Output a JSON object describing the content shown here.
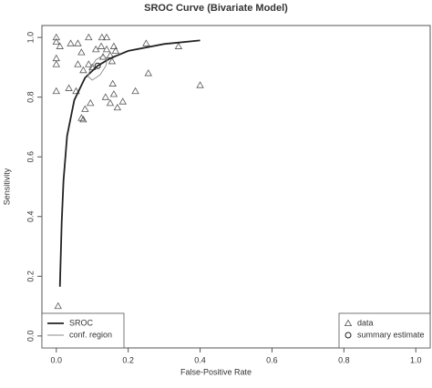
{
  "chart_data": {
    "type": "scatter",
    "title": "SROC Curve (Bivariate Model)",
    "x_label": "False-Positive Rate",
    "y_label": "Sensitivity",
    "xlim": [
      -0.04,
      1.04
    ],
    "ylim": [
      -0.04,
      1.04
    ],
    "xticks": [
      {
        "value": 0,
        "label": "0.0"
      },
      0.2,
      0.4,
      0.6,
      0.8,
      {
        "value": 1,
        "label": "1.0"
      }
    ],
    "yticks": [
      {
        "value": 0,
        "label": "0.0"
      },
      0.2,
      0.4,
      0.6,
      0.8,
      {
        "value": 1,
        "label": "1.0"
      }
    ],
    "series": [
      {
        "name": "data",
        "kind": "triangle",
        "color": "#555555",
        "legend": "bottomright",
        "x": [
          0.0,
          0.0,
          0.01,
          0.0,
          0.0,
          0.0,
          0.005,
          0.04,
          0.06,
          0.09,
          0.07,
          0.06,
          0.09,
          0.035,
          0.055,
          0.075,
          0.1,
          0.08,
          0.07,
          0.075,
          0.095,
          0.11,
          0.127,
          0.14,
          0.125,
          0.14,
          0.13,
          0.15,
          0.16,
          0.165,
          0.155,
          0.137,
          0.157,
          0.15,
          0.17,
          0.16,
          0.185,
          0.22,
          0.25,
          0.256,
          0.34,
          0.4
        ],
        "y": [
          1.0,
          0.985,
          0.97,
          0.93,
          0.91,
          0.82,
          0.1,
          0.98,
          0.98,
          1.0,
          0.95,
          0.91,
          0.91,
          0.83,
          0.82,
          0.89,
          0.9,
          0.76,
          0.73,
          0.725,
          0.78,
          0.96,
          1.0,
          1.0,
          0.97,
          0.96,
          0.935,
          0.94,
          0.97,
          0.955,
          0.92,
          0.8,
          0.845,
          0.78,
          0.765,
          0.81,
          0.785,
          0.82,
          0.98,
          0.88,
          0.97,
          0.84
        ]
      },
      {
        "name": "summary estimate",
        "kind": "circle",
        "color": "#222222",
        "legend": "bottomright",
        "x": [
          0.115
        ],
        "y": [
          0.905
        ]
      },
      {
        "name": "SROC",
        "kind": "line",
        "color": "#222222",
        "width": 1.8,
        "legend": "bottomleft",
        "x": [
          0.01,
          0.015,
          0.02,
          0.03,
          0.05,
          0.08,
          0.115,
          0.15,
          0.2,
          0.3,
          0.4
        ],
        "y": [
          0.165,
          0.38,
          0.52,
          0.67,
          0.79,
          0.865,
          0.905,
          0.93,
          0.955,
          0.978,
          0.99
        ]
      },
      {
        "name": "conf. region",
        "kind": "polygon",
        "color": "#888888",
        "width": 0.9,
        "legend": "bottomleft",
        "x": [
          0.088,
          0.095,
          0.11,
          0.13,
          0.142,
          0.138,
          0.122,
          0.1
        ],
        "y": [
          0.87,
          0.895,
          0.925,
          0.94,
          0.93,
          0.905,
          0.875,
          0.857
        ]
      }
    ]
  }
}
